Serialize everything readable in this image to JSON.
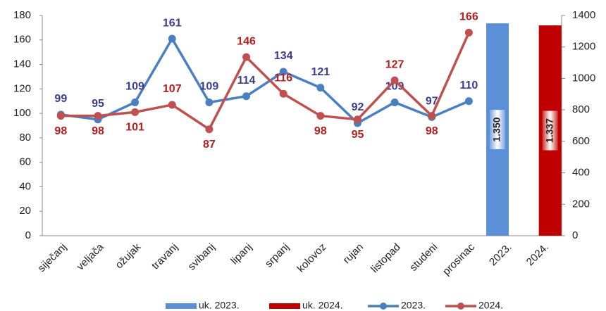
{
  "chart_data": {
    "type": "combo",
    "categories": [
      "siječanj",
      "veljača",
      "ožujak",
      "travanj",
      "svibanj",
      "lipanj",
      "srpanj",
      "kolovoz",
      "rujan",
      "listopad",
      "studeni",
      "prosinac",
      "2023.",
      "2024."
    ],
    "series": [
      {
        "name": "uk. 2023.",
        "type": "bar",
        "axis": "y2",
        "color": "#5b8fd6",
        "values": [
          null,
          null,
          null,
          null,
          null,
          null,
          null,
          null,
          null,
          null,
          null,
          null,
          1350,
          null
        ],
        "value_labels": [
          null,
          null,
          null,
          null,
          null,
          null,
          null,
          null,
          null,
          null,
          null,
          null,
          "1.350",
          null
        ]
      },
      {
        "name": "uk. 2024.",
        "type": "bar",
        "axis": "y2",
        "color": "#c00000",
        "values": [
          null,
          null,
          null,
          null,
          null,
          null,
          null,
          null,
          null,
          null,
          null,
          null,
          null,
          1337
        ],
        "value_labels": [
          null,
          null,
          null,
          null,
          null,
          null,
          null,
          null,
          null,
          null,
          null,
          null,
          null,
          "1.337"
        ]
      },
      {
        "name": "2023.",
        "type": "line",
        "color": "#4a7fc1",
        "label_color": "#3b3b8f",
        "values": [
          99,
          95,
          109,
          161,
          109,
          114,
          134,
          121,
          92,
          109,
          97,
          110,
          null,
          null
        ]
      },
      {
        "name": "2024.",
        "type": "line",
        "color": "#c0504d",
        "label_color": "#b41e1e",
        "values": [
          98,
          98,
          101,
          107,
          87,
          146,
          116,
          98,
          95,
          127,
          98,
          166,
          null,
          null
        ]
      }
    ],
    "ylim": [
      0,
      180
    ],
    "yticks": [
      0,
      20,
      40,
      60,
      80,
      100,
      120,
      140,
      160,
      180
    ],
    "y2lim": [
      0,
      1400
    ],
    "y2ticks": [
      0,
      200,
      400,
      600,
      800,
      1000,
      1200,
      1400
    ],
    "legend": "bottom"
  }
}
